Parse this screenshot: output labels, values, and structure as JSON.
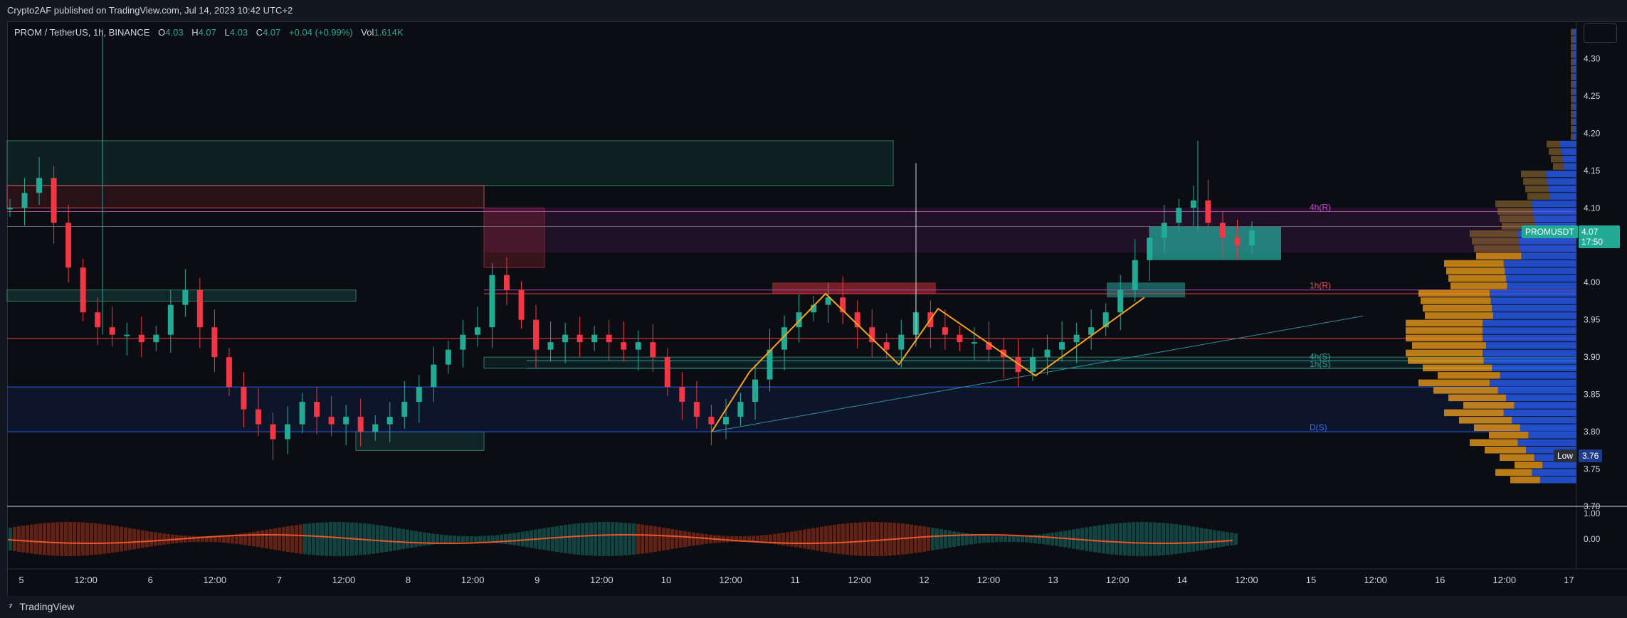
{
  "header": {
    "published_line": "Crypto2AF published on TradingView.com, Jul 14, 2023 10:42 UTC+2"
  },
  "legend": {
    "symbol": "PROM / TetherUS, 1h, BINANCE",
    "open_label": "O",
    "open": "4.03",
    "high_label": "H",
    "high": "4.07",
    "low_label": "L",
    "low": "4.03",
    "close_label": "C",
    "close": "4.07",
    "change": "+0.04 (+0.99%)",
    "vol_label": "Vol",
    "vol": "1.614K"
  },
  "tags": {
    "symbol": "PROMUSDT",
    "price": "4.07",
    "countdown": "17:50",
    "low_label": "Low",
    "low_value": "3.76"
  },
  "footer": {
    "brand": "TradingView",
    "icon": "tradingview-logo-icon"
  },
  "colors": {
    "up": "#22ab94",
    "down": "#f23645",
    "zigzag": "#f7a21b",
    "support": "#26a69a",
    "resistance": "#e040fb",
    "daily_support": "#2962ff"
  },
  "chart_data": {
    "type": "candlestick",
    "ylim": [
      3.7,
      4.35
    ],
    "y_ticks": [
      "4.30",
      "4.25",
      "4.20",
      "4.15",
      "4.10",
      "4.05",
      "4.00",
      "3.95",
      "3.90",
      "3.85",
      "3.80",
      "3.75",
      "3.70"
    ],
    "x_ticks": [
      "5",
      "12:00",
      "6",
      "12:00",
      "7",
      "12:00",
      "8",
      "12:00",
      "9",
      "12:00",
      "10",
      "12:00",
      "11",
      "12:00",
      "12",
      "12:00",
      "13",
      "12:00",
      "14",
      "12:00",
      "15",
      "12:00",
      "16",
      "12:00",
      "17"
    ],
    "level_labels": [
      {
        "text": "4h(R)",
        "price": 4.095
      },
      {
        "text": "1h(R)",
        "price": 3.99
      },
      {
        "text": "4h(S)",
        "price": 3.895
      },
      {
        "text": "1h(S)",
        "price": 3.885
      },
      {
        "text": "D(S)",
        "price": 3.8
      }
    ],
    "oscillator_ticks": [
      "1.00",
      "0.00"
    ],
    "close_path": [
      4.1,
      4.12,
      4.14,
      4.08,
      4.02,
      3.96,
      3.94,
      3.93,
      3.93,
      3.92,
      3.93,
      3.97,
      3.99,
      3.94,
      3.9,
      3.86,
      3.83,
      3.81,
      3.79,
      3.81,
      3.84,
      3.82,
      3.81,
      3.82,
      3.8,
      3.81,
      3.82,
      3.84,
      3.86,
      3.89,
      3.91,
      3.93,
      3.94,
      4.01,
      3.99,
      3.95,
      3.91,
      3.92,
      3.93,
      3.92,
      3.93,
      3.92,
      3.91,
      3.92,
      3.9,
      3.86,
      3.84,
      3.82,
      3.81,
      3.82,
      3.84,
      3.87,
      3.91,
      3.94,
      3.96,
      3.97,
      3.98,
      3.96,
      3.94,
      3.92,
      3.91,
      3.93,
      3.96,
      3.94,
      3.93,
      3.92,
      3.92,
      3.91,
      3.9,
      3.88,
      3.9,
      3.91,
      3.92,
      3.93,
      3.94,
      3.96,
      3.99,
      4.03,
      4.06,
      4.08,
      4.1,
      4.11,
      4.08,
      4.06,
      4.05,
      4.07
    ]
  }
}
